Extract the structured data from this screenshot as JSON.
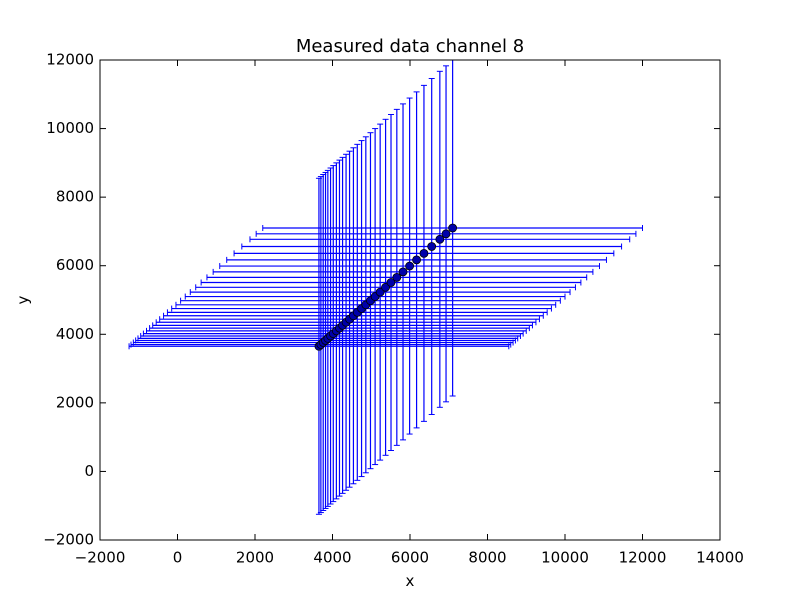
{
  "chart_data": {
    "type": "errorbar",
    "title": "Measured data channel 8",
    "x_label": "x",
    "y_label": "y",
    "color": "#0000ff",
    "marker_color": "#0000aa",
    "x": [
      3650,
      3700,
      3760,
      3820,
      3880,
      3950,
      4020,
      4100,
      4180,
      4260,
      4350,
      4440,
      4540,
      4640,
      4750,
      4860,
      4980,
      5100,
      5230,
      5370,
      5510,
      5660,
      5820,
      5990,
      6170,
      6360,
      6560,
      6770,
      6930,
      7100
    ],
    "values": [
      3650,
      3700,
      3760,
      3820,
      3880,
      3950,
      4020,
      4100,
      4180,
      4260,
      4350,
      4440,
      4540,
      4640,
      4750,
      4860,
      4980,
      5100,
      5230,
      5370,
      5510,
      5660,
      5820,
      5990,
      6170,
      6360,
      6560,
      6770,
      6930,
      7100
    ],
    "xerr": 4900,
    "yerr": 4900,
    "xlim": [
      -2000,
      14000
    ],
    "ylim": [
      -2000,
      12000
    ],
    "xticks": [
      {
        "value": -2000,
        "label": "−2000"
      },
      0,
      2000,
      4000,
      6000,
      8000,
      10000,
      12000,
      14000
    ],
    "yticks": [
      {
        "value": -2000,
        "label": "−2000"
      },
      0,
      2000,
      4000,
      6000,
      8000,
      10000,
      12000
    ]
  }
}
